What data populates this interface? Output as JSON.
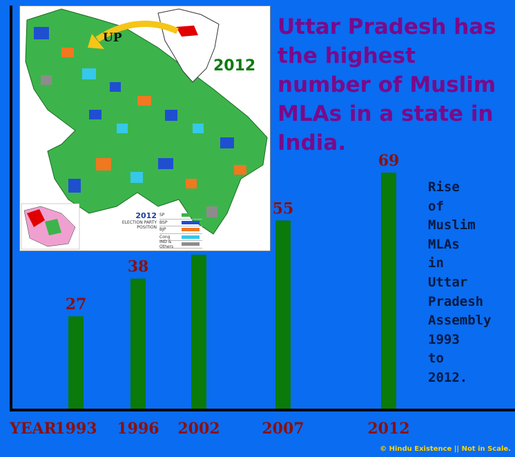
{
  "chart_data": {
    "type": "bar",
    "title": "Uttar Pradesh has the highest number of Muslim MLAs in a state in India.",
    "xlabel": "YEAR",
    "categories": [
      "1993",
      "1996",
      "2002",
      "2007",
      "2012"
    ],
    "values": [
      27,
      38,
      45,
      55,
      69
    ],
    "bar_color": "#0a7a0a",
    "label_color": "#8b0f0f",
    "background_color": "#0a6cf0",
    "side_note": "Rise\nof\nMuslim\nMLAs\nin\nUttar\nPradesh\nAssembly\n1993\nto\n2012."
  },
  "map": {
    "year_label": "2012",
    "arrow_label": "UP",
    "legend_year": "2012",
    "legend_caption": "ELECTION PARTY POSITION",
    "legend": [
      {
        "name": "SP",
        "color": "#3cb44b"
      },
      {
        "name": "BSP",
        "color": "#1f4fd0"
      },
      {
        "name": "BJP",
        "color": "#f07820"
      },
      {
        "name": "Cong",
        "color": "#36c8e8"
      },
      {
        "name": "IND & Others",
        "color": "#8c8c8c"
      }
    ]
  },
  "footer": "© Hindu Existence || Not in Scale."
}
